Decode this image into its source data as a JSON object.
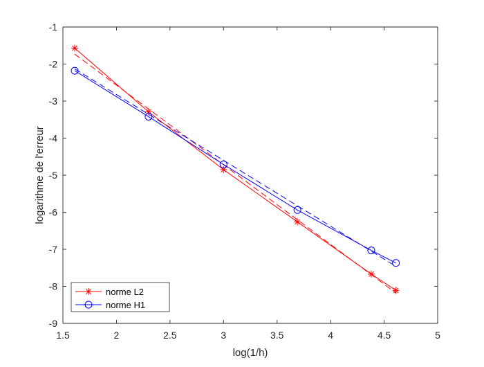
{
  "chart_data": {
    "type": "line",
    "xlabel": "log(1/h)",
    "ylabel": "logarithme de l'erreur",
    "xlim": [
      1.5,
      5
    ],
    "ylim": [
      -9,
      -1
    ],
    "xticks": [
      "1.5",
      "2",
      "2.5",
      "3",
      "3.5",
      "4",
      "4.5",
      "5"
    ],
    "yticks": [
      "-1",
      "-2",
      "-3",
      "-4",
      "-5",
      "-6",
      "-7",
      "-8",
      "-9"
    ],
    "grid": false,
    "legend_position": "bottom-left",
    "series": [
      {
        "name": "norme L2",
        "color": "#ff0000",
        "marker": "asterisk",
        "line": "solid",
        "x": [
          1.61,
          2.3,
          3.0,
          3.69,
          4.38,
          4.61
        ],
        "y": [
          -1.57,
          -3.29,
          -4.85,
          -6.26,
          -7.67,
          -8.11
        ]
      },
      {
        "name": "norme H1",
        "color": "#0000ff",
        "marker": "circle",
        "line": "solid",
        "x": [
          1.61,
          2.3,
          3.0,
          3.69,
          4.38,
          4.61
        ],
        "y": [
          -2.18,
          -3.42,
          -4.71,
          -5.94,
          -7.03,
          -7.37
        ]
      }
    ],
    "fit_lines": [
      {
        "color": "#ff0000",
        "line": "dashed",
        "x": [
          1.61,
          4.61
        ],
        "y": [
          -1.73,
          -8.18
        ]
      },
      {
        "color": "#0000ff",
        "line": "dashed",
        "x": [
          1.61,
          4.61
        ],
        "y": [
          -2.13,
          -7.46
        ]
      }
    ]
  }
}
